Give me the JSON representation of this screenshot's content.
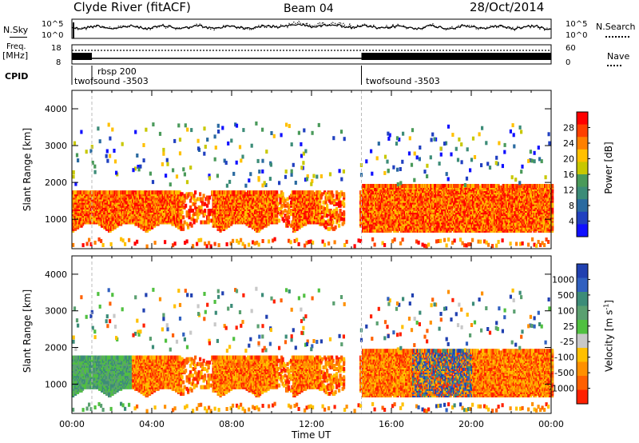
{
  "header": {
    "station": "Clyde River (fitACF)",
    "beam": "Beam 04",
    "date": "28/Oct/2014"
  },
  "top_panels": {
    "nsky_label": "N.Sky",
    "nsearch_label": "N.Search",
    "freq_label": "Freq.",
    "freq_unit": "[MHz]",
    "nave_label": "Nave",
    "cpid_label": "CPID",
    "noise_ticks_left": [
      "10^5",
      "10^0"
    ],
    "noise_ticks_right": [
      "10^5",
      "10^0"
    ],
    "freq_ticks": [
      "18",
      "8"
    ],
    "nave_ticks": [
      "60",
      "0"
    ],
    "cpid_entries": [
      {
        "name": "twofsound -3503",
        "start": 0.0
      },
      {
        "name": "rbsp 200",
        "start": 1.0
      },
      {
        "name": "twofsound -3503",
        "start": 14.5
      }
    ]
  },
  "chart_data": [
    {
      "type": "heatmap",
      "parameter": "power",
      "ylabel": "Slant Range [km]",
      "colorbar_label": "Power [dB]",
      "colorbar_ticks": [
        "28",
        "24",
        "20",
        "16",
        "12",
        "8",
        "4"
      ],
      "colorbar_colors": [
        "#ff0000",
        "#ff4000",
        "#ff8000",
        "#ffc000",
        "#c8c800",
        "#4a9a5a",
        "#3c8c78",
        "#2a6aa0",
        "#2040c0",
        "#1010ff"
      ],
      "yticks": [
        "4000",
        "3000",
        "2000",
        "1000"
      ],
      "ylim": [
        200,
        4500
      ],
      "xlim": [
        0,
        24
      ]
    },
    {
      "type": "heatmap",
      "parameter": "velocity",
      "xlabel": "Time UT",
      "ylabel": "Slant Range [km]",
      "colorbar_label": "Velocity [m s^-1]",
      "colorbar_ticks": [
        "1000",
        "500",
        "100",
        "25",
        "-25",
        "-100",
        "-500",
        "-1000"
      ],
      "colorbar_colors": [
        "#2040b0",
        "#3060c0",
        "#3c8c78",
        "#5aa070",
        "#50c040",
        "#c8c8c8",
        "#ffc000",
        "#ff9000",
        "#ff6000",
        "#ff2000"
      ],
      "xticks": [
        "00:00",
        "04:00",
        "08:00",
        "12:00",
        "16:00",
        "20:00",
        "00:00"
      ],
      "yticks": [
        "4000",
        "3000",
        "2000",
        "1000"
      ],
      "ylim": [
        200,
        4500
      ],
      "xlim": [
        0,
        24
      ]
    }
  ]
}
